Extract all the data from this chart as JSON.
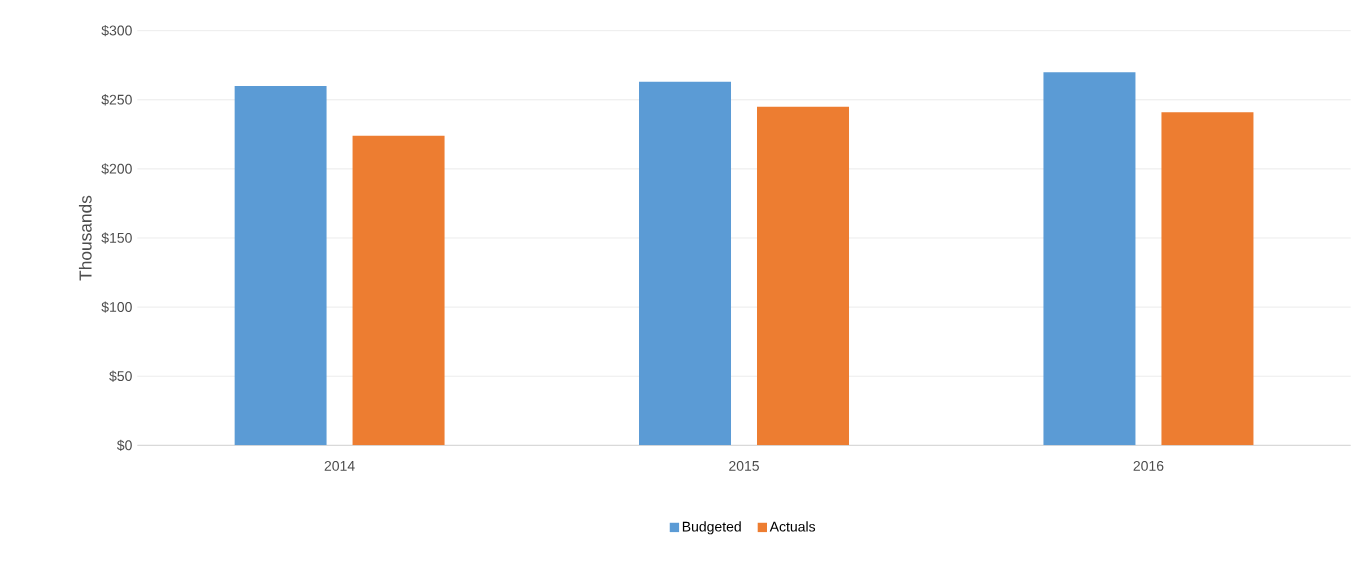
{
  "chart_data": {
    "type": "bar",
    "ylabel": "Thousands",
    "categories": [
      "2014",
      "2015",
      "2016"
    ],
    "series": [
      {
        "name": "Budgeted",
        "color": "#5b9bd5",
        "values": [
          260,
          263,
          270
        ]
      },
      {
        "name": "Actuals",
        "color": "#ed7d31",
        "values": [
          224,
          245,
          241
        ]
      }
    ],
    "ylim": [
      0,
      300
    ],
    "yticks": [
      {
        "value": 0,
        "label": "$0"
      },
      {
        "value": 50,
        "label": "$50"
      },
      {
        "value": 100,
        "label": "$100"
      },
      {
        "value": 150,
        "label": "$150"
      },
      {
        "value": 200,
        "label": "$200"
      },
      {
        "value": 250,
        "label": "$250"
      },
      {
        "value": 300,
        "label": "$300"
      }
    ],
    "grid": "y",
    "legend": "bottom"
  }
}
